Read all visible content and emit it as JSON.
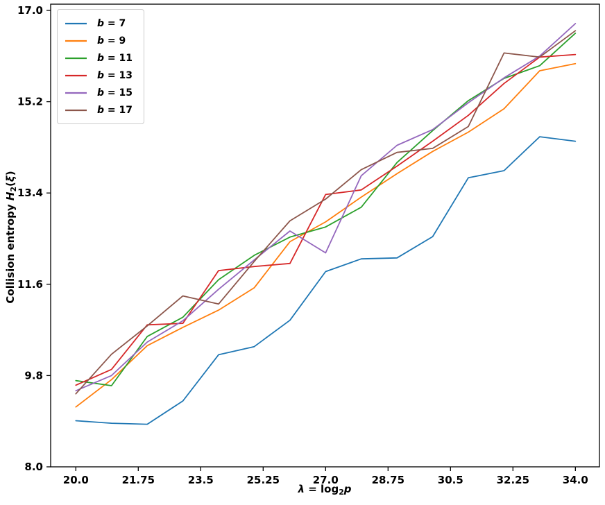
{
  "chart_data": {
    "type": "line",
    "title": "",
    "grid": false,
    "legend_position": "upper left",
    "xlabel_parts": {
      "var": "λ",
      "eq": " = ",
      "func": "log",
      "sub": "2",
      "arg": "p"
    },
    "ylabel_parts": {
      "prefix": "Collision entropy ",
      "var": "H",
      "sub": "2",
      "open": "(",
      "xi": "ξ",
      "close": ")"
    },
    "x": [
      20,
      21,
      22,
      23,
      24,
      25,
      26,
      27,
      28,
      29,
      30,
      31,
      32,
      33,
      34
    ],
    "x_tick_values": [
      20.0,
      21.75,
      23.5,
      25.25,
      27.0,
      28.75,
      30.5,
      32.25,
      34.0
    ],
    "x_tick_labels": [
      "20.0",
      "21.75",
      "23.5",
      "25.25",
      "27.0",
      "28.75",
      "30.5",
      "32.25",
      "34.0"
    ],
    "y_tick_values": [
      8.0,
      9.8,
      11.6,
      13.4,
      15.2,
      17.0
    ],
    "y_tick_labels": [
      "8.0",
      "9.8",
      "11.6",
      "13.4",
      "15.2",
      "17.0"
    ],
    "xlim": [
      19.3,
      34.7
    ],
    "ylim": [
      8.0,
      17.0
    ],
    "series": [
      {
        "name": "b = 7",
        "color": "#1f77b4",
        "values": [
          8.91,
          8.86,
          8.84,
          9.3,
          10.21,
          10.37,
          10.89,
          11.85,
          12.1,
          12.12,
          12.54,
          13.7,
          13.84,
          14.51,
          14.42
        ]
      },
      {
        "name": "b = 9",
        "color": "#ff7f0e",
        "values": [
          9.18,
          9.72,
          10.39,
          10.75,
          11.09,
          11.53,
          12.44,
          12.83,
          13.32,
          13.78,
          14.22,
          14.6,
          15.06,
          15.81,
          15.95
        ]
      },
      {
        "name": "b = 11",
        "color": "#2ca02c",
        "values": [
          9.7,
          9.6,
          10.57,
          10.95,
          11.69,
          12.17,
          12.53,
          12.73,
          13.12,
          14.0,
          14.63,
          15.22,
          15.66,
          15.91,
          16.55
        ]
      },
      {
        "name": "b = 13",
        "color": "#d62728",
        "values": [
          9.61,
          9.92,
          10.8,
          10.83,
          11.87,
          11.95,
          12.01,
          13.37,
          13.46,
          13.93,
          14.42,
          14.93,
          15.56,
          16.08,
          16.13
        ]
      },
      {
        "name": "b = 15",
        "color": "#9467bd",
        "values": [
          9.5,
          9.8,
          10.46,
          10.88,
          11.5,
          12.08,
          12.65,
          12.22,
          13.74,
          14.34,
          14.65,
          15.18,
          15.67,
          16.1,
          16.74
        ]
      },
      {
        "name": "b = 17",
        "color": "#8c564b",
        "values": [
          9.44,
          10.22,
          10.78,
          11.37,
          11.21,
          12.05,
          12.85,
          13.28,
          13.86,
          14.2,
          14.28,
          14.71,
          16.16,
          16.08,
          16.6
        ]
      }
    ]
  }
}
